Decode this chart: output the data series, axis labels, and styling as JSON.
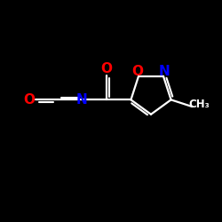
{
  "bg_color": "#000000",
  "bond_color": "#ffffff",
  "atom_colors": {
    "O": "#ff0000",
    "N": "#0000ff",
    "C": "#ffffff"
  },
  "font_size_atom": 11,
  "figsize": [
    2.5,
    2.5
  ],
  "dpi": 100
}
